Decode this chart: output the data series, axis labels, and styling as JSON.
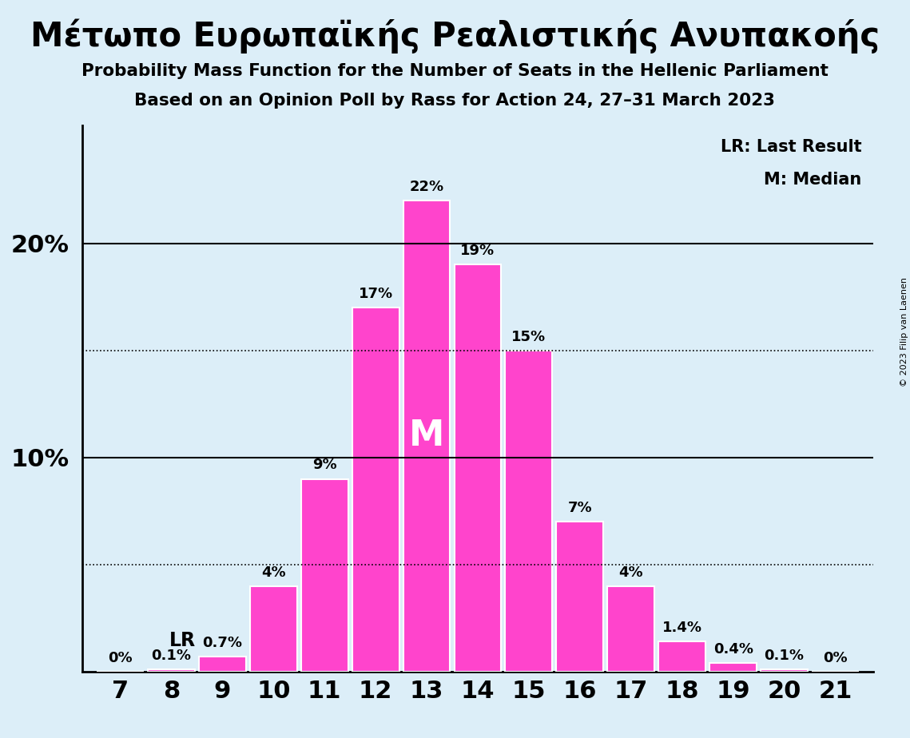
{
  "title": "Μέτωπο Ευρωπαϊκής Ρεαλιστικής Ανυπακοής",
  "subtitle1": "Probability Mass Function for the Number of Seats in the Hellenic Parliament",
  "subtitle2": "Based on an Opinion Poll by Rass for Action 24, 27–31 March 2023",
  "copyright": "© 2023 Filip van Laenen",
  "seats": [
    7,
    8,
    9,
    10,
    11,
    12,
    13,
    14,
    15,
    16,
    17,
    18,
    19,
    20,
    21
  ],
  "probabilities": [
    0.0,
    0.1,
    0.7,
    4.0,
    9.0,
    17.0,
    22.0,
    19.0,
    15.0,
    7.0,
    4.0,
    1.4,
    0.4,
    0.1,
    0.0
  ],
  "bar_labels": [
    "0%",
    "0.1%",
    "0.7%",
    "4%",
    "9%",
    "17%",
    "22%",
    "19%",
    "15%",
    "7%",
    "4%",
    "1.4%",
    "0.4%",
    "0.1%",
    "0%"
  ],
  "bar_color": "#FF44CC",
  "background_color": "#DCEEF8",
  "lr_seat": 9,
  "median_seat": 13,
  "yticks": [
    10,
    20
  ],
  "dotted_lines": [
    5,
    15
  ],
  "ylim": [
    0,
    25.5
  ],
  "legend_lr": "LR: Last Result",
  "legend_m": "M: Median"
}
